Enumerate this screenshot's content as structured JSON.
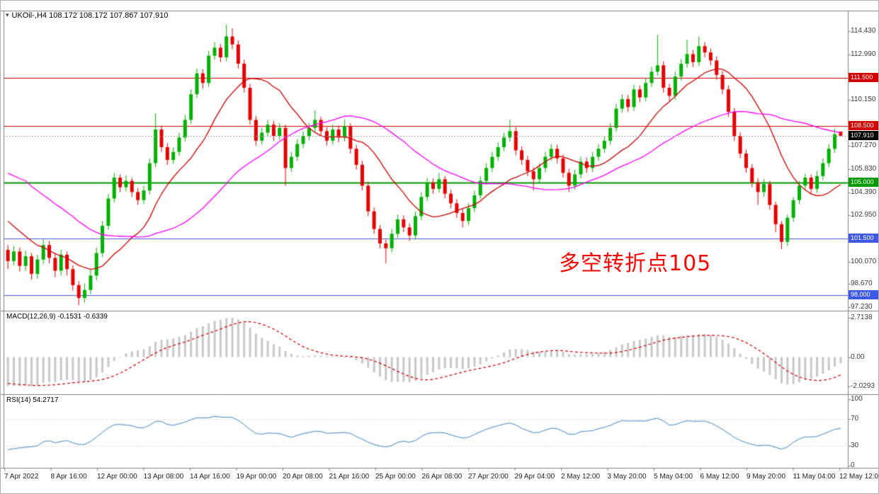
{
  "window": {
    "collapse_arrow": "▾",
    "symbol_header": "UKOil-,H4 108.172 108.172 107.867 107.910"
  },
  "chart_data": [
    {
      "type": "candlestick",
      "symbol": "UKOil-",
      "timeframe": "H4",
      "ohlc_display": {
        "open": "108.172",
        "high": "108.172",
        "low": "107.867",
        "close": "107.910"
      },
      "ylim": [
        97.0,
        115.75
      ],
      "y_ticks": [
        "114.430",
        "112.990",
        "110.150",
        "107.270",
        "105.830",
        "104.390",
        "102.950",
        "100.070",
        "98.670",
        "97.230"
      ],
      "x_ticks": [
        "7 Apr 2022",
        "8 Apr 16:00",
        "12 Apr 00:00",
        "13 Apr 08:00",
        "14 Apr 16:00",
        "19 Apr 00:00",
        "20 Apr 08:00",
        "21 Apr 16:00",
        "25 Apr 00:00",
        "26 Apr 08:00",
        "27 Apr 20:00",
        "29 Apr 04:00",
        "2 May 12:00",
        "3 May 20:00",
        "5 May 04:00",
        "6 May 12:00",
        "9 May 20:00",
        "11 May 04:00",
        "12 May 12:00"
      ],
      "levels": [
        {
          "price": 111.5,
          "label": "111.500",
          "color": "#d40000",
          "width": 1
        },
        {
          "price": 108.5,
          "label": "108.500",
          "color": "#d40000",
          "width": 1
        },
        {
          "price": 105.0,
          "label": "105.000",
          "color": "#009900",
          "width": 2
        },
        {
          "price": 101.5,
          "label": "101.500",
          "color": "#3e58e8",
          "width": 1
        },
        {
          "price": 98.0,
          "label": "98.000",
          "color": "#3e58e8",
          "width": 1
        }
      ],
      "current_price": {
        "value": 107.91,
        "label": "107.910",
        "badge_color": "#000000"
      },
      "annotation": {
        "text": "多空转折点105",
        "color": "#ff0000"
      },
      "moving_averages": [
        {
          "name": "ma-fast",
          "color": "#cc0000",
          "period": 13
        },
        {
          "name": "ma-slow",
          "color": "#ff00ff",
          "period": 34
        }
      ],
      "colors": {
        "up": "#00b000",
        "down": "#e60000",
        "frame": "#808080",
        "background": "#ffffff",
        "current_line": "#a0a0a0"
      },
      "candles": [
        [
          100.8,
          101.1,
          99.6,
          100.1
        ],
        [
          100.1,
          101.05,
          99.85,
          100.7
        ],
        [
          100.7,
          100.95,
          99.45,
          99.8
        ],
        [
          99.8,
          100.75,
          99.5,
          100.4
        ],
        [
          100.4,
          100.6,
          98.95,
          99.3
        ],
        [
          99.3,
          100.5,
          99.0,
          100.2
        ],
        [
          100.2,
          101.45,
          99.9,
          101.1
        ],
        [
          101.1,
          101.35,
          99.95,
          100.3
        ],
        [
          100.3,
          100.55,
          99.1,
          99.5
        ],
        [
          99.5,
          100.8,
          99.2,
          100.5
        ],
        [
          100.5,
          100.7,
          99.2,
          99.6
        ],
        [
          99.6,
          99.85,
          98.25,
          98.6
        ],
        [
          98.6,
          98.85,
          97.35,
          97.8
        ],
        [
          97.8,
          98.7,
          97.5,
          98.3
        ],
        [
          98.3,
          99.55,
          98.05,
          99.2
        ],
        [
          99.2,
          100.95,
          98.9,
          100.6
        ],
        [
          100.6,
          102.6,
          100.35,
          102.3
        ],
        [
          102.3,
          104.3,
          102.05,
          104.0
        ],
        [
          104.0,
          105.6,
          103.75,
          105.3
        ],
        [
          105.3,
          105.5,
          104.4,
          104.7
        ],
        [
          104.7,
          105.45,
          104.45,
          105.1
        ],
        [
          105.1,
          105.3,
          104.1,
          104.4
        ],
        [
          104.4,
          104.65,
          103.6,
          103.9
        ],
        [
          103.9,
          104.8,
          103.65,
          104.5
        ],
        [
          104.5,
          106.5,
          104.25,
          106.2
        ],
        [
          106.2,
          109.3,
          105.95,
          108.3
        ],
        [
          108.3,
          108.55,
          106.9,
          107.2
        ],
        [
          107.2,
          107.45,
          106.1,
          106.4
        ],
        [
          106.4,
          107.2,
          106.15,
          106.9
        ],
        [
          106.9,
          108.1,
          106.65,
          107.8
        ],
        [
          107.8,
          109.2,
          107.55,
          108.9
        ],
        [
          108.9,
          110.8,
          108.65,
          110.5
        ],
        [
          110.5,
          112.1,
          110.25,
          111.8
        ],
        [
          111.8,
          112.05,
          110.85,
          111.2
        ],
        [
          111.2,
          113.2,
          110.95,
          112.9
        ],
        [
          112.9,
          113.75,
          112.65,
          113.4
        ],
        [
          113.4,
          113.65,
          112.5,
          112.8
        ],
        [
          112.8,
          114.85,
          112.55,
          114.1
        ],
        [
          114.1,
          114.6,
          113.3,
          113.6
        ],
        [
          113.6,
          113.85,
          112.1,
          112.4
        ],
        [
          112.4,
          112.65,
          110.6,
          110.9
        ],
        [
          110.9,
          111.15,
          108.6,
          108.9
        ],
        [
          108.9,
          109.15,
          107.3,
          107.6
        ],
        [
          107.6,
          108.4,
          107.35,
          108.1
        ],
        [
          108.1,
          108.9,
          107.85,
          108.6
        ],
        [
          108.6,
          108.85,
          107.6,
          107.9
        ],
        [
          107.9,
          108.7,
          107.65,
          108.4
        ],
        [
          108.4,
          108.6,
          104.8,
          105.9
        ],
        [
          105.9,
          106.9,
          105.65,
          106.6
        ],
        [
          106.6,
          107.7,
          106.35,
          107.4
        ],
        [
          107.4,
          108.2,
          107.15,
          107.9
        ],
        [
          107.9,
          108.7,
          107.65,
          108.4
        ],
        [
          108.4,
          109.5,
          108.15,
          108.9
        ],
        [
          108.9,
          109.1,
          107.9,
          108.2
        ],
        [
          108.2,
          108.45,
          107.3,
          107.6
        ],
        [
          107.6,
          108.6,
          107.35,
          108.3
        ],
        [
          108.3,
          108.55,
          107.5,
          107.8
        ],
        [
          107.8,
          108.9,
          107.55,
          108.5
        ],
        [
          108.5,
          108.7,
          106.8,
          107.1
        ],
        [
          107.1,
          107.35,
          105.8,
          106.1
        ],
        [
          106.1,
          106.35,
          104.5,
          104.8
        ],
        [
          104.8,
          105.05,
          102.9,
          103.2
        ],
        [
          103.2,
          103.45,
          101.8,
          102.1
        ],
        [
          102.1,
          102.35,
          100.9,
          101.2
        ],
        [
          101.2,
          101.45,
          99.95,
          100.9
        ],
        [
          100.9,
          102.1,
          100.65,
          101.8
        ],
        [
          101.8,
          103.0,
          101.55,
          102.7
        ],
        [
          102.7,
          102.95,
          101.9,
          102.2
        ],
        [
          102.2,
          102.45,
          101.35,
          101.7
        ],
        [
          101.7,
          103.2,
          101.45,
          102.9
        ],
        [
          102.9,
          104.4,
          102.65,
          104.1
        ],
        [
          104.1,
          105.3,
          103.85,
          105.0
        ],
        [
          105.0,
          105.25,
          104.3,
          104.6
        ],
        [
          104.6,
          105.6,
          104.35,
          105.2
        ],
        [
          105.2,
          105.4,
          104.0,
          104.3
        ],
        [
          104.3,
          104.55,
          103.4,
          103.7
        ],
        [
          103.7,
          103.95,
          102.8,
          103.1
        ],
        [
          103.1,
          103.35,
          102.2,
          102.6
        ],
        [
          102.6,
          103.7,
          102.35,
          103.4
        ],
        [
          103.4,
          104.5,
          103.15,
          104.2
        ],
        [
          104.2,
          105.4,
          103.95,
          105.1
        ],
        [
          105.1,
          106.2,
          104.85,
          105.9
        ],
        [
          105.9,
          106.9,
          105.65,
          106.6
        ],
        [
          106.6,
          107.5,
          106.35,
          107.2
        ],
        [
          107.2,
          108.1,
          106.95,
          107.8
        ],
        [
          107.8,
          108.9,
          107.55,
          108.2
        ],
        [
          108.2,
          108.45,
          106.7,
          107.0
        ],
        [
          107.0,
          107.25,
          106.1,
          106.4
        ],
        [
          106.4,
          106.65,
          105.4,
          105.7
        ],
        [
          105.7,
          105.95,
          104.5,
          105.2
        ],
        [
          105.2,
          106.2,
          104.95,
          105.9
        ],
        [
          105.9,
          106.9,
          105.65,
          106.6
        ],
        [
          106.6,
          107.4,
          106.35,
          107.1
        ],
        [
          107.1,
          107.35,
          106.2,
          106.5
        ],
        [
          106.5,
          106.75,
          105.3,
          105.6
        ],
        [
          105.6,
          105.85,
          104.4,
          104.8
        ],
        [
          104.8,
          105.8,
          104.55,
          105.5
        ],
        [
          105.5,
          106.6,
          105.25,
          106.3
        ],
        [
          106.3,
          106.55,
          105.6,
          105.9
        ],
        [
          105.9,
          106.9,
          105.65,
          106.6
        ],
        [
          106.6,
          107.4,
          106.35,
          107.1
        ],
        [
          107.1,
          107.9,
          106.85,
          107.6
        ],
        [
          107.6,
          108.7,
          107.35,
          108.4
        ],
        [
          108.4,
          109.9,
          108.15,
          109.6
        ],
        [
          109.6,
          110.5,
          109.35,
          110.2
        ],
        [
          110.2,
          110.45,
          109.4,
          109.7
        ],
        [
          109.7,
          111.1,
          109.45,
          110.8
        ],
        [
          110.8,
          111.05,
          110.0,
          110.3
        ],
        [
          110.3,
          111.5,
          110.05,
          111.2
        ],
        [
          111.2,
          112.2,
          110.95,
          111.9
        ],
        [
          111.9,
          114.2,
          111.65,
          112.3
        ],
        [
          112.3,
          112.55,
          110.6,
          110.9
        ],
        [
          110.9,
          111.15,
          110.05,
          110.4
        ],
        [
          110.4,
          111.9,
          110.15,
          111.6
        ],
        [
          111.6,
          112.7,
          111.35,
          112.4
        ],
        [
          112.4,
          113.9,
          112.15,
          113.0
        ],
        [
          113.0,
          113.25,
          112.2,
          112.5
        ],
        [
          112.5,
          114.1,
          112.25,
          113.5
        ],
        [
          113.5,
          113.75,
          112.8,
          113.1
        ],
        [
          113.1,
          113.35,
          112.3,
          112.6
        ],
        [
          112.6,
          112.85,
          111.4,
          111.7
        ],
        [
          111.7,
          111.95,
          110.5,
          110.8
        ],
        [
          110.8,
          111.05,
          109.1,
          109.4
        ],
        [
          109.4,
          109.65,
          107.6,
          107.9
        ],
        [
          107.9,
          108.15,
          106.5,
          106.8
        ],
        [
          106.8,
          107.05,
          105.6,
          105.9
        ],
        [
          105.9,
          106.15,
          104.7,
          105.0
        ],
        [
          105.0,
          105.25,
          103.6,
          104.4
        ],
        [
          104.4,
          105.2,
          104.1,
          104.9
        ],
        [
          104.9,
          105.1,
          103.3,
          103.6
        ],
        [
          103.6,
          103.8,
          101.9,
          102.4
        ],
        [
          102.4,
          102.6,
          100.85,
          101.3
        ],
        [
          101.3,
          103.0,
          101.05,
          102.8
        ],
        [
          102.8,
          104.1,
          102.55,
          103.9
        ],
        [
          103.9,
          105.1,
          103.65,
          104.8
        ],
        [
          104.8,
          105.55,
          104.55,
          105.3
        ],
        [
          105.3,
          105.5,
          104.3,
          104.6
        ],
        [
          104.6,
          105.7,
          104.35,
          105.4
        ],
        [
          105.4,
          106.5,
          105.15,
          106.2
        ],
        [
          106.2,
          107.4,
          105.95,
          107.1
        ],
        [
          107.1,
          108.35,
          106.85,
          108.0
        ],
        [
          108.172,
          108.172,
          107.867,
          107.91
        ]
      ]
    },
    {
      "type": "bar",
      "name": "MACD",
      "header": "MACD(12,26,9) -0.1531 -0.6339",
      "values_display": {
        "main": "-0.1531",
        "signal": "-0.6339"
      },
      "params": {
        "fast": 12,
        "slow": 26,
        "signal": 9
      },
      "y_ticks": [
        "2.7138",
        "0.00",
        "-2.0293"
      ],
      "ylim": [
        -2.62,
        3.2
      ],
      "histogram_color": "#c8c8c8",
      "signal_color": "#cc0000"
    },
    {
      "type": "line",
      "name": "RSI",
      "header": "RSI(14) 54.2717",
      "value_display": "54.2717",
      "period": 14,
      "y_ticks": [
        "100",
        "70",
        "30",
        "0"
      ],
      "guide_levels": [
        70,
        30
      ],
      "line_color": "#4086c8"
    }
  ]
}
